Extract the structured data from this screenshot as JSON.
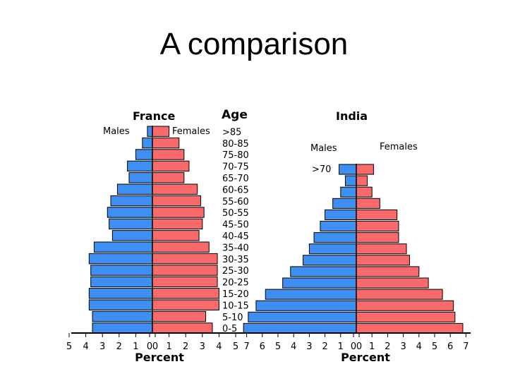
{
  "slide": {
    "title": "A comparison"
  },
  "colors": {
    "male": "#3f8ff3",
    "female": "#fb6a6a",
    "outline": "#000000"
  },
  "chart_data": [
    {
      "type": "bar",
      "title": "France",
      "age_header": "Age",
      "legend_male": "Males",
      "legend_female": "Females",
      "xlabel": "Percent",
      "xlim": [
        -5,
        5
      ],
      "tick_labels": [
        "5",
        "4",
        "3",
        "2",
        "1",
        "0",
        "0",
        "1",
        "2",
        "3",
        "4",
        "5"
      ],
      "categories": [
        ">85",
        "80-85",
        "75-80",
        "70-75",
        "65-70",
        "60-65",
        "55-60",
        "50-55",
        "45-50",
        "40-45",
        "35-40",
        "30-35",
        "25-30",
        "20-25",
        "15-20",
        "10-15",
        "5-10",
        "0-5"
      ],
      "series": [
        {
          "name": "Males",
          "values": [
            0.3,
            0.6,
            1.0,
            1.5,
            1.4,
            2.1,
            2.5,
            2.7,
            2.6,
            2.4,
            3.5,
            3.8,
            3.7,
            3.7,
            3.8,
            3.8,
            3.6,
            3.6
          ]
        },
        {
          "name": "Females",
          "values": [
            1.0,
            1.6,
            1.9,
            2.2,
            1.9,
            2.7,
            2.9,
            3.1,
            3.0,
            2.8,
            3.4,
            3.9,
            3.9,
            3.9,
            4.0,
            4.0,
            3.2,
            3.6
          ]
        }
      ]
    },
    {
      "type": "bar",
      "title": "India",
      "legend_male": "Males",
      "legend_female": "Females",
      "xlabel": "Percent",
      "xlim": [
        -7,
        7
      ],
      "tick_labels": [
        "7",
        "6",
        "5",
        "4",
        "3",
        "2",
        "1",
        "0",
        "0",
        "1",
        "2",
        "3",
        "4",
        "5",
        "6",
        "7"
      ],
      "categories": [
        ">70",
        "65-70",
        "60-65",
        "55-60",
        "50-55",
        "45-50",
        "40-45",
        "35-40",
        "30-35",
        "25-30",
        "20-25",
        "15-20",
        "10-15",
        "5-10",
        "0-5"
      ],
      "series": [
        {
          "name": "Males",
          "values": [
            1.1,
            0.7,
            1.0,
            1.5,
            2.0,
            2.3,
            2.7,
            3.0,
            3.4,
            4.2,
            4.7,
            5.8,
            6.4,
            6.9,
            7.2
          ]
        },
        {
          "name": "Females",
          "values": [
            1.1,
            0.7,
            1.0,
            1.5,
            2.6,
            2.7,
            2.7,
            3.2,
            3.4,
            4.0,
            4.6,
            5.5,
            6.2,
            6.3,
            6.8
          ]
        }
      ]
    }
  ]
}
